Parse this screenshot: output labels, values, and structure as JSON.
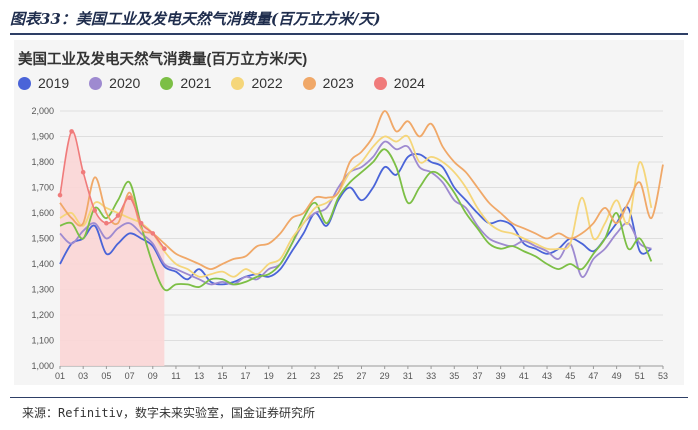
{
  "figure": {
    "title": "图表33：美国工业及发电天然气消费量(百万立方米/天)",
    "source": "来源：Refinitiv，数字未来实验室，国金证券研究所"
  },
  "chart_data": {
    "type": "line",
    "title": "美国工业及发电天然气消费量(百万立方米/天)",
    "xlabel": "",
    "ylabel": "",
    "ylim": [
      1000,
      2000
    ],
    "yticks": [
      "1,000",
      "1,100",
      "1,200",
      "1,300",
      "1,400",
      "1,500",
      "1,600",
      "1,700",
      "1,800",
      "1,900",
      "2,000"
    ],
    "xticks": [
      "01",
      "03",
      "05",
      "07",
      "09",
      "11",
      "13",
      "15",
      "17",
      "19",
      "21",
      "23",
      "25",
      "27",
      "29",
      "31",
      "33",
      "35",
      "37",
      "39",
      "41",
      "43",
      "45",
      "47",
      "49",
      "51",
      "53"
    ],
    "grid": "horizontal",
    "legend_position": "top-left",
    "series": [
      {
        "name": "2019",
        "color": "#4a64d8",
        "x": [
          1,
          2,
          3,
          4,
          5,
          6,
          7,
          8,
          9,
          10,
          11,
          12,
          13,
          14,
          15,
          16,
          17,
          18,
          19,
          20,
          21,
          22,
          23,
          24,
          25,
          26,
          27,
          28,
          29,
          30,
          31,
          32,
          33,
          34,
          35,
          36,
          37,
          38,
          39,
          40,
          41,
          42,
          43,
          44,
          45,
          46,
          47,
          48,
          49,
          50,
          51,
          52
        ],
        "values": [
          1400,
          1480,
          1500,
          1550,
          1440,
          1480,
          1520,
          1500,
          1470,
          1390,
          1370,
          1340,
          1380,
          1330,
          1320,
          1330,
          1350,
          1360,
          1350,
          1380,
          1450,
          1520,
          1600,
          1550,
          1650,
          1700,
          1650,
          1700,
          1780,
          1750,
          1820,
          1830,
          1800,
          1780,
          1700,
          1650,
          1600,
          1560,
          1570,
          1550,
          1480,
          1460,
          1440,
          1460,
          1500,
          1480,
          1450,
          1500,
          1560,
          1620,
          1450,
          1460
        ]
      },
      {
        "name": "2020",
        "color": "#9e8ad0",
        "x": [
          1,
          2,
          3,
          4,
          5,
          6,
          7,
          8,
          9,
          10,
          11,
          12,
          13,
          14,
          15,
          16,
          17,
          18,
          19,
          20,
          21,
          22,
          23,
          24,
          25,
          26,
          27,
          28,
          29,
          30,
          31,
          32,
          33,
          34,
          35,
          36,
          37,
          38,
          39,
          40,
          41,
          42,
          43,
          44,
          45,
          46,
          47,
          48,
          49,
          50,
          51,
          52
        ],
        "values": [
          1520,
          1480,
          1530,
          1560,
          1500,
          1540,
          1560,
          1520,
          1480,
          1400,
          1380,
          1360,
          1340,
          1320,
          1330,
          1320,
          1350,
          1340,
          1380,
          1400,
          1480,
          1560,
          1600,
          1620,
          1700,
          1760,
          1780,
          1820,
          1880,
          1850,
          1860,
          1780,
          1760,
          1720,
          1650,
          1620,
          1550,
          1500,
          1480,
          1470,
          1490,
          1470,
          1450,
          1420,
          1480,
          1350,
          1420,
          1460,
          1520,
          1560,
          1480,
          1460
        ]
      },
      {
        "name": "2021",
        "color": "#7cbf45",
        "x": [
          1,
          2,
          3,
          4,
          5,
          6,
          7,
          8,
          9,
          10,
          11,
          12,
          13,
          14,
          15,
          16,
          17,
          18,
          19,
          20,
          21,
          22,
          23,
          24,
          25,
          26,
          27,
          28,
          29,
          30,
          31,
          32,
          33,
          34,
          35,
          36,
          37,
          38,
          39,
          40,
          41,
          42,
          43,
          44,
          45,
          46,
          47,
          48,
          49,
          50,
          51,
          52
        ],
        "values": [
          1550,
          1560,
          1500,
          1620,
          1580,
          1650,
          1720,
          1550,
          1400,
          1300,
          1320,
          1320,
          1310,
          1340,
          1340,
          1320,
          1330,
          1350,
          1360,
          1400,
          1480,
          1580,
          1640,
          1560,
          1660,
          1720,
          1760,
          1800,
          1850,
          1780,
          1640,
          1700,
          1760,
          1740,
          1680,
          1600,
          1540,
          1480,
          1460,
          1470,
          1450,
          1430,
          1400,
          1380,
          1400,
          1380,
          1440,
          1500,
          1600,
          1460,
          1500,
          1410
        ]
      },
      {
        "name": "2022",
        "color": "#f5d67a",
        "x": [
          1,
          2,
          3,
          4,
          5,
          6,
          7,
          8,
          9,
          10,
          11,
          12,
          13,
          14,
          15,
          16,
          17,
          18,
          19,
          20,
          21,
          22,
          23,
          24,
          25,
          26,
          27,
          28,
          29,
          30,
          31,
          32,
          33,
          34,
          35,
          36,
          37,
          38,
          39,
          40,
          41,
          42,
          43,
          44,
          45,
          46,
          47,
          48,
          49,
          50,
          51,
          52
        ],
        "values": [
          1580,
          1600,
          1550,
          1640,
          1620,
          1600,
          1580,
          1560,
          1520,
          1450,
          1400,
          1380,
          1350,
          1360,
          1370,
          1350,
          1380,
          1360,
          1400,
          1420,
          1500,
          1560,
          1620,
          1640,
          1680,
          1760,
          1800,
          1860,
          1900,
          1880,
          1900,
          1800,
          1820,
          1800,
          1760,
          1700,
          1620,
          1560,
          1530,
          1520,
          1500,
          1480,
          1460,
          1460,
          1480,
          1660,
          1500,
          1560,
          1650,
          1560,
          1800,
          1620
        ]
      },
      {
        "name": "2023",
        "color": "#f0a868",
        "x": [
          1,
          2,
          3,
          4,
          5,
          6,
          7,
          8,
          9,
          10,
          11,
          12,
          13,
          14,
          15,
          16,
          17,
          18,
          19,
          20,
          21,
          22,
          23,
          24,
          25,
          26,
          27,
          28,
          29,
          30,
          31,
          32,
          33,
          34,
          35,
          36,
          37,
          38,
          39,
          40,
          41,
          42,
          43,
          44,
          45,
          46,
          47,
          48,
          49,
          50,
          51,
          52,
          53
        ],
        "values": [
          1640,
          1580,
          1560,
          1740,
          1600,
          1560,
          1680,
          1540,
          1520,
          1480,
          1440,
          1420,
          1400,
          1380,
          1400,
          1420,
          1430,
          1470,
          1480,
          1520,
          1580,
          1600,
          1660,
          1660,
          1680,
          1800,
          1840,
          1900,
          2000,
          1920,
          1960,
          1900,
          1950,
          1860,
          1800,
          1760,
          1700,
          1640,
          1600,
          1560,
          1540,
          1520,
          1500,
          1520,
          1500,
          1520,
          1560,
          1620,
          1560,
          1640,
          1720,
          1580,
          1790
        ]
      },
      {
        "name": "2024",
        "color": "#f07b7b",
        "x": [
          1,
          2,
          3,
          4,
          5,
          6,
          7,
          8,
          9,
          10
        ],
        "values": [
          1670,
          1920,
          1760,
          1610,
          1560,
          1590,
          1660,
          1560,
          1520,
          1460
        ]
      }
    ]
  }
}
